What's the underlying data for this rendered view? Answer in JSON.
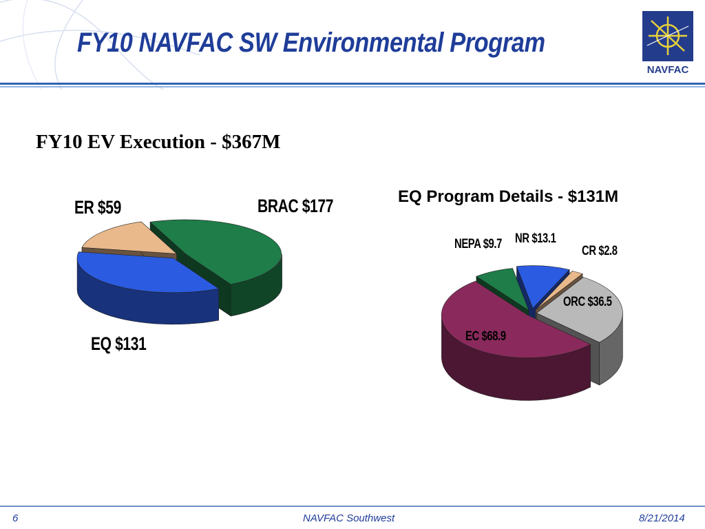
{
  "slide": {
    "title": "FY10 NAVFAC SW Environmental Program",
    "subtitle": "FY10 EV Execution - $367M",
    "logo_text": "NAVFAC",
    "footer": {
      "page_number": "6",
      "center": "NAVFAC Southwest",
      "date": "8/21/2014"
    },
    "colors": {
      "title": "#1f3d99",
      "rule": "#2f63b4"
    }
  },
  "chart_data": [
    {
      "type": "pie",
      "title": "",
      "style": "3d-exploded",
      "slices": [
        {
          "name": "BRAC",
          "value": 177,
          "label": "BRAC $177",
          "color": "#1e7d48"
        },
        {
          "name": "EQ",
          "value": 131,
          "label": "EQ $131",
          "color": "#2b5be0"
        },
        {
          "name": "ER",
          "value": 59,
          "label": "ER $59",
          "color": "#e9b98c"
        }
      ]
    },
    {
      "type": "pie",
      "title": "EQ Program Details - $131M",
      "style": "3d-exploded",
      "slices": [
        {
          "name": "NR",
          "value": 13.1,
          "label": "NR  $13.1",
          "color": "#2b5be0"
        },
        {
          "name": "CR",
          "value": 2.8,
          "label": "CR  $2.8",
          "color": "#e9b98c"
        },
        {
          "name": "ORC",
          "value": 36.5,
          "label": "ORC  $36.5",
          "color": "#b9b9b9"
        },
        {
          "name": "EC",
          "value": 68.9,
          "label": "EC  $68.9",
          "color": "#8a2a5c"
        },
        {
          "name": "NEPA",
          "value": 9.7,
          "label": "NEPA  $9.7",
          "color": "#1e7d48"
        }
      ]
    }
  ]
}
